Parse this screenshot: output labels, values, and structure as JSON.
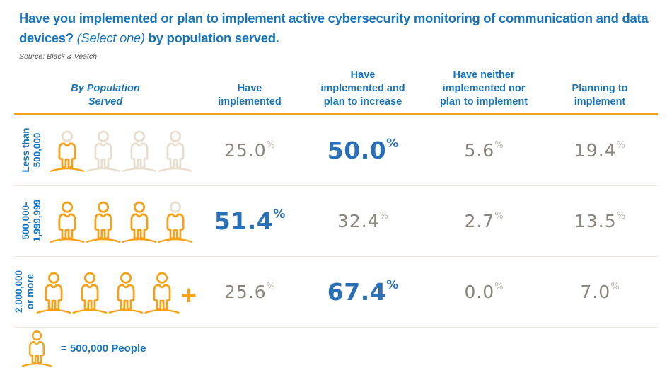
{
  "title": {
    "main": "Have you implemented or plan to implement active cybersecurity monitoring of communication and data devices?",
    "select_note": "(Select one)",
    "suffix": "by population served."
  },
  "source": "Source: Black & Veatch",
  "pct": "%",
  "colors": {
    "blue": "#1B75BC",
    "value_blue": "#2A70B8",
    "orange": "#F7A11A",
    "beige": "#E7DECF",
    "value_gray": "#8B857E",
    "rule_orange": "#F7A11A"
  },
  "headers": [
    "By Population Served",
    "Have implemented",
    "Have implemented and plan to increase",
    "Have neither implemented nor plan to implement",
    "Planning to implement"
  ],
  "rows": [
    {
      "label_line1": "Less than",
      "label_line2": "500,000",
      "icons": [
        {
          "head": "beige",
          "body": "orange"
        },
        {
          "head": "beige",
          "body": "beige"
        },
        {
          "head": "beige",
          "body": "beige"
        },
        {
          "head": "beige",
          "body": "beige"
        }
      ],
      "values": [
        "25.0",
        "50.0",
        "5.6",
        "19.4"
      ],
      "highlight_column": 1
    },
    {
      "label_line1": "500,000-",
      "label_line2": "1,999,999",
      "icons": [
        {
          "head": "orange",
          "body": "orange"
        },
        {
          "head": "orange",
          "body": "orange"
        },
        {
          "head": "orange",
          "body": "orange"
        },
        {
          "head": "beige",
          "body": "orange"
        }
      ],
      "values": [
        "51.4",
        "32.4",
        "2.7",
        "13.5"
      ],
      "highlight_column": 0
    },
    {
      "label_line1": "2,000,000",
      "label_line2": "or more",
      "icons": [
        {
          "head": "orange",
          "body": "orange"
        },
        {
          "head": "orange",
          "body": "orange"
        },
        {
          "head": "orange",
          "body": "orange"
        },
        {
          "head": "orange",
          "body": "orange"
        }
      ],
      "plus": "+",
      "values": [
        "25.6",
        "67.4",
        "0.0",
        "7.0"
      ],
      "highlight_column": 1
    }
  ],
  "legend": {
    "icon": {
      "head": "orange",
      "body": "orange"
    },
    "text": "= 500,000 People"
  },
  "chart_data": {
    "type": "table",
    "subtype": "pictograph-table",
    "title": "Have you implemented or plan to implement active cybersecurity monitoring of communication and data devices? (Select one) by population served.",
    "source": "Source: Black & Veatch",
    "row_axis_label": "By Population Served",
    "categories": [
      "Less than 500,000",
      "500,000-1,999,999",
      "2,000,000 or more"
    ],
    "columns": [
      "Have implemented",
      "Have implemented and plan to increase",
      "Have neither implemented nor plan to implement",
      "Planning to implement"
    ],
    "values_percent": [
      [
        25.0,
        50.0,
        5.6,
        19.4
      ],
      [
        51.4,
        32.4,
        2.7,
        13.5
      ],
      [
        25.6,
        67.4,
        0.0,
        7.0
      ]
    ],
    "highlighted_cells": [
      [
        0,
        1
      ],
      [
        1,
        0
      ],
      [
        2,
        1
      ]
    ],
    "legend": "1 person icon = 500,000 People",
    "pictograph_icon_counts": [
      1,
      4,
      5
    ],
    "layout": {
      "grid": "off",
      "header_rule_color": "#F7A11A",
      "highlight_color": "#2A70B8"
    }
  }
}
